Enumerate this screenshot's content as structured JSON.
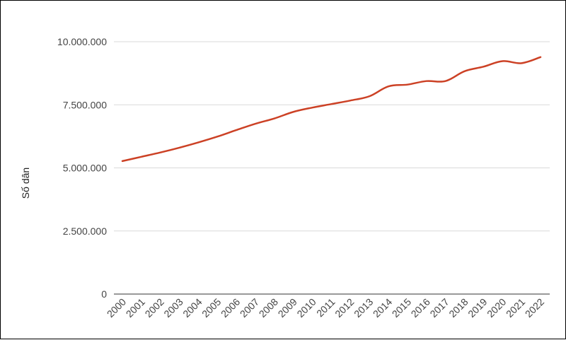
{
  "chart_data": {
    "type": "line",
    "ylabel": "Số dân",
    "xlabel": "",
    "title": "",
    "ylim": [
      0,
      10000000
    ],
    "grid": true,
    "legend": "none",
    "y_ticks": [
      {
        "value": 0,
        "label": "0"
      },
      {
        "value": 2500000,
        "label": "2.500.000"
      },
      {
        "value": 5000000,
        "label": "5.000.000"
      },
      {
        "value": 7500000,
        "label": "7.500.000"
      },
      {
        "value": 10000000,
        "label": "10.000.000"
      }
    ],
    "categories": [
      "2000",
      "2001",
      "2002",
      "2003",
      "2004",
      "2005",
      "2006",
      "2007",
      "2008",
      "2009",
      "2010",
      "2011",
      "2012",
      "2013",
      "2014",
      "2015",
      "2016",
      "2017",
      "2018",
      "2019",
      "2020",
      "2021",
      "2022"
    ],
    "series": [
      {
        "color": "#cc4125",
        "values": [
          5270000,
          5440000,
          5610000,
          5800000,
          6010000,
          6240000,
          6500000,
          6750000,
          6960000,
          7220000,
          7390000,
          7530000,
          7670000,
          7840000,
          8230000,
          8300000,
          8440000,
          8440000,
          8830000,
          9010000,
          9230000,
          9150000,
          9390000
        ]
      }
    ]
  }
}
